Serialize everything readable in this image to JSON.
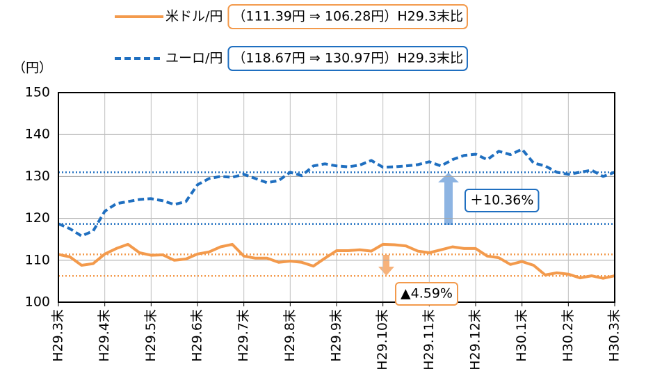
{
  "chart_data": {
    "type": "line",
    "y_unit_label": "（円）",
    "categories": [
      "H29.3末",
      null,
      null,
      null,
      "H29.4末",
      null,
      null,
      null,
      "H29.5末",
      null,
      null,
      null,
      "H29.6末",
      null,
      null,
      null,
      "H29.7末",
      null,
      null,
      null,
      "H29.8末",
      null,
      null,
      null,
      "H29.9末",
      null,
      null,
      null,
      "H29.10末",
      null,
      null,
      null,
      "H29.11末",
      null,
      null,
      null,
      "H29.12末",
      null,
      null,
      null,
      "H30.1末",
      null,
      null,
      null,
      "H30.2末",
      null,
      null,
      null,
      "H30.3末"
    ],
    "series": [
      {
        "name": "米ドル/円",
        "color": "#f39a4c",
        "dash": "solid",
        "legend_note": "（111.39円 ⇒ 106.28円）H29.3末比",
        "values": [
          111.4,
          110.8,
          108.8,
          109.2,
          111.5,
          112.8,
          113.8,
          111.8,
          111.2,
          111.3,
          110.0,
          110.3,
          111.5,
          112.0,
          113.2,
          113.8,
          111.0,
          110.5,
          110.5,
          109.5,
          109.8,
          109.5,
          108.6,
          110.5,
          112.3,
          112.3,
          112.5,
          112.2,
          113.8,
          113.7,
          113.4,
          112.2,
          111.8,
          112.5,
          113.2,
          112.8,
          112.8,
          111.0,
          110.6,
          109.0,
          109.7,
          108.8,
          106.5,
          107.0,
          106.7,
          105.8,
          106.3,
          105.7,
          106.3
        ]
      },
      {
        "name": "ユーロ/円",
        "color": "#1f6fc0",
        "dash": "dashed",
        "legend_note": "（118.67円 ⇒ 130.97円）H29.3末比",
        "values": [
          118.7,
          117.5,
          115.8,
          117.0,
          121.7,
          123.5,
          124.0,
          124.5,
          124.7,
          124.2,
          123.3,
          124.0,
          128.0,
          129.5,
          130.0,
          129.8,
          130.5,
          129.5,
          128.5,
          129.0,
          131.0,
          130.2,
          132.5,
          133.0,
          132.5,
          132.3,
          132.7,
          133.8,
          132.2,
          132.3,
          132.5,
          132.8,
          133.5,
          132.5,
          134.0,
          135.0,
          135.3,
          134.0,
          136.0,
          135.2,
          136.5,
          133.2,
          132.5,
          131.0,
          130.5,
          131.0,
          131.5,
          130.0,
          131.0
        ]
      }
    ],
    "reference_lines": [
      {
        "value": 111.39,
        "color": "#f39a4c"
      },
      {
        "value": 106.28,
        "color": "#f39a4c"
      },
      {
        "value": 118.67,
        "color": "#1f6fc0"
      },
      {
        "value": 130.97,
        "color": "#1f6fc0"
      }
    ],
    "annotations": [
      {
        "text": "＋10.36%",
        "color": "#1f6fc0"
      },
      {
        "text": "▲4.59%",
        "color": "#f39a4c"
      }
    ],
    "ylim": [
      100,
      150
    ],
    "yticks": [
      100,
      110,
      120,
      130,
      140,
      150
    ],
    "grid": true
  }
}
